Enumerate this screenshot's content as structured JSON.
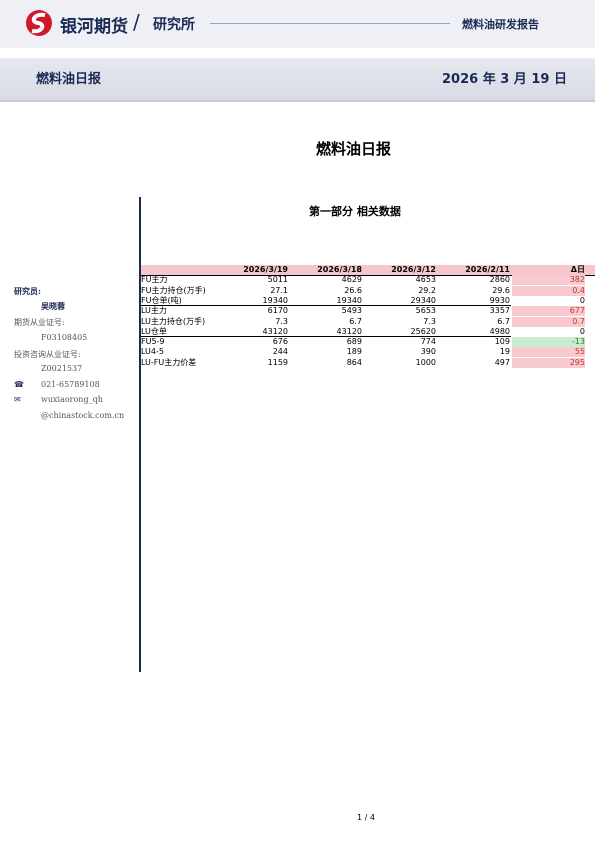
{
  "header": {
    "brand": "银河期货",
    "division": "研究所",
    "report_type": "燃料油研发报告",
    "title": "燃料油日报",
    "date": "2026 年 3 月 19 日"
  },
  "document": {
    "title": "燃料油日报",
    "section": "第一部分 相关数据",
    "page": "1 / 4"
  },
  "sidebar": {
    "role": "研究员:",
    "name": "吴晓蓉",
    "license_label": "期货从业证号:",
    "license": "F03108405",
    "advisory_label": "投资咨询从业证号:",
    "advisory": "Z0021537",
    "phone": "021-65789108",
    "email_user": "wuxiaorong_qh",
    "email_domain": "@chinastock.com.cn"
  },
  "table": {
    "columns": [
      "",
      "2026/3/19",
      "2026/3/18",
      "2026/3/12",
      "2026/2/11",
      "Δ日"
    ],
    "rows": [
      [
        "FU主力",
        5011,
        4629,
        4653,
        2860,
        382
      ],
      [
        "FU主力持仓(万手)",
        27.1,
        26.6,
        29.2,
        29.6,
        0.4
      ],
      [
        "FU仓单(吨)",
        19340,
        19340,
        29340,
        9930,
        0
      ],
      [
        "LU主力",
        6170,
        5493,
        5653,
        3357,
        677
      ],
      [
        "LU主力持仓(万手)",
        7.3,
        6.7,
        7.3,
        6.7,
        0.7
      ],
      [
        "LU仓单",
        43120,
        43120,
        25620,
        4980,
        0
      ],
      [
        "FU5-9",
        676,
        689,
        774,
        109,
        -13
      ],
      [
        "LU4-5",
        244,
        189,
        390,
        19,
        55
      ],
      [
        "LU-FU主力价差",
        1159,
        864,
        1000,
        497,
        295
      ]
    ],
    "group_ends": [
      2,
      5
    ]
  }
}
